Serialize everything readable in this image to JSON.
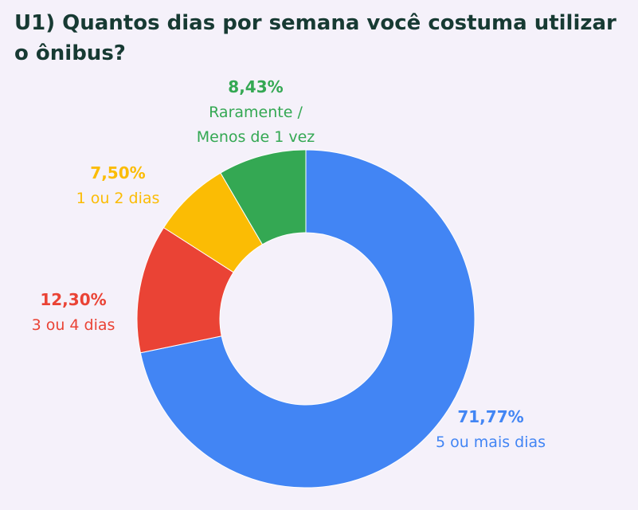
{
  "title": "U1) Quantos dias por semana você costuma utilizar o ônibus?",
  "chart_data": {
    "type": "pie",
    "donut": true,
    "title": "U1) Quantos dias por semana você costuma utilizar o ônibus?",
    "slices": [
      {
        "label": "5 ou mais dias",
        "value": 71.77,
        "value_label": "71,77%",
        "color": "#4285f4"
      },
      {
        "label": "3 ou 4 dias",
        "value": 12.3,
        "value_label": "12,30%",
        "color": "#ea4335"
      },
      {
        "label": "1 ou 2 dias",
        "value": 7.5,
        "value_label": "7,50%",
        "color": "#fbbc04"
      },
      {
        "label": "Raramente / Menos de 1 vez",
        "value": 8.43,
        "value_label": "8,43%",
        "color": "#34a853",
        "label_lines": [
          "Raramente /",
          "Menos de 1 vez"
        ]
      }
    ]
  }
}
